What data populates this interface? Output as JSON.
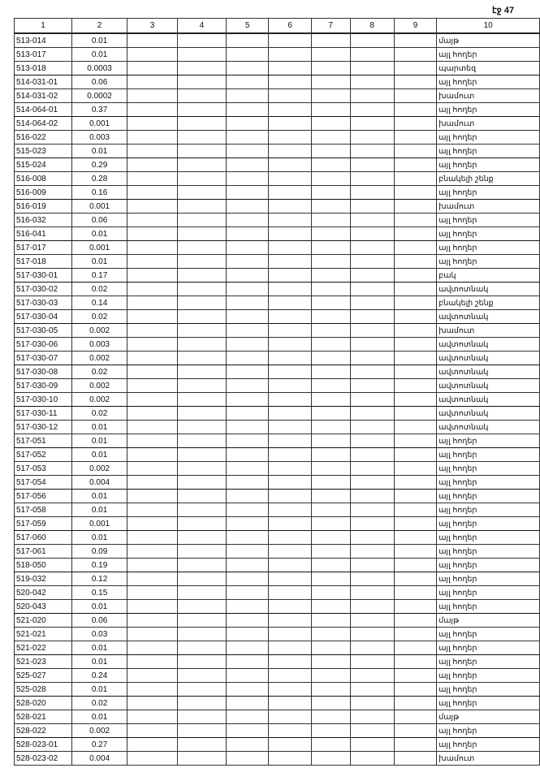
{
  "page_label": "էջ 47",
  "columns": [
    "1",
    "2",
    "3",
    "4",
    "5",
    "6",
    "7",
    "8",
    "9",
    "10"
  ],
  "rows": [
    [
      "513-014",
      "0.01",
      "մայթ"
    ],
    [
      "513-017",
      "0.01",
      "այլ հողեր"
    ],
    [
      "513-018",
      "0.0003",
      "պարտեզ"
    ],
    [
      "514-031-01",
      "0.06",
      "այլ հողեր"
    ],
    [
      "514-031-02",
      "0.0002",
      "խամուտ"
    ],
    [
      "514-064-01",
      "0.37",
      "այլ հողեր"
    ],
    [
      "514-064-02",
      "0.001",
      "խամուտ"
    ],
    [
      "516-022",
      "0.003",
      "այլ հողեր"
    ],
    [
      "515-023",
      "0.01",
      "այլ հողեր"
    ],
    [
      "515-024",
      "0.29",
      "այլ հողեր"
    ],
    [
      "516-008",
      "0.28",
      "բնակելի շենք"
    ],
    [
      "516-009",
      "0.16",
      "այլ հողեր"
    ],
    [
      "516-019",
      "0.001",
      "խամուտ"
    ],
    [
      "516-032",
      "0.06",
      "այլ հողեր"
    ],
    [
      "516-041",
      "0.01",
      "այլ հողեր"
    ],
    [
      "517-017",
      "0.001",
      "այլ հողեր"
    ],
    [
      "517-018",
      "0.01",
      "այլ հողեր"
    ],
    [
      "517-030-01",
      "0.17",
      "բակ"
    ],
    [
      "517-030-02",
      "0.02",
      "ավտոտնակ"
    ],
    [
      "517-030-03",
      "0.14",
      "բնակելի շենք"
    ],
    [
      "517-030-04",
      "0.02",
      "ավտոտնակ"
    ],
    [
      "517-030-05",
      "0.002",
      "խամուտ"
    ],
    [
      "517-030-06",
      "0.003",
      "ավտոտնակ"
    ],
    [
      "517-030-07",
      "0.002",
      "ավտոտնակ"
    ],
    [
      "517-030-08",
      "0.02",
      "ավտոտնակ"
    ],
    [
      "517-030-09",
      "0.002",
      "ավտոտնակ"
    ],
    [
      "517-030-10",
      "0.002",
      "ավտոտնակ"
    ],
    [
      "517-030-11",
      "0.02",
      "ավտոտնակ"
    ],
    [
      "517-030-12",
      "0.01",
      "ավտոտնակ"
    ],
    [
      "517-051",
      "0.01",
      "այլ հողեր"
    ],
    [
      "517-052",
      "0.01",
      "այլ հողեր"
    ],
    [
      "517-053",
      "0.002",
      "այլ հողեր"
    ],
    [
      "517-054",
      "0.004",
      "այլ հողեր"
    ],
    [
      "517-056",
      "0.01",
      "այլ հողեր"
    ],
    [
      "517-058",
      "0.01",
      "այլ հողեր"
    ],
    [
      "517-059",
      "0.001",
      "այլ հողեր"
    ],
    [
      "517-060",
      "0.01",
      "այլ հողեր"
    ],
    [
      "517-061",
      "0.09",
      "այլ հողեր"
    ],
    [
      "518-050",
      "0.19",
      "այլ հողեր"
    ],
    [
      "519-032",
      "0.12",
      "այլ հողեր"
    ],
    [
      "520-042",
      "0.15",
      "այլ հողեր"
    ],
    [
      "520-043",
      "0.01",
      "այլ հողեր"
    ],
    [
      "521-020",
      "0.06",
      "մայթ"
    ],
    [
      "521-021",
      "0.03",
      "այլ հողեր"
    ],
    [
      "521-022",
      "0.01",
      "այլ հողեր"
    ],
    [
      "521-023",
      "0.01",
      "այլ հողեր"
    ],
    [
      "525-027",
      "0.24",
      "այլ հողեր"
    ],
    [
      "525-028",
      "0.01",
      "այլ հողեր"
    ],
    [
      "528-020",
      "0.02",
      "այլ հողեր"
    ],
    [
      "528-021",
      "0.01",
      "մայթ"
    ],
    [
      "528-022",
      "0.002",
      "այլ հողեր"
    ],
    [
      "528-023-01",
      "0.27",
      "այլ հողեր"
    ],
    [
      "528-023-02",
      "0.004",
      "խամուտ"
    ]
  ]
}
